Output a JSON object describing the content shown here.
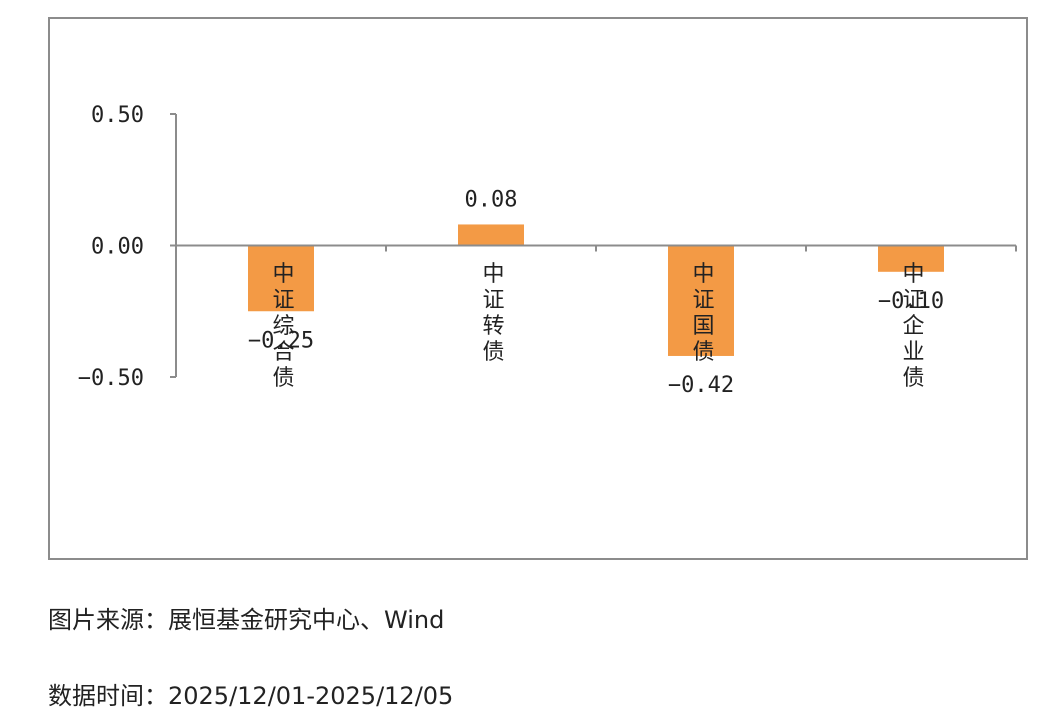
{
  "chart_data": {
    "type": "bar",
    "categories": [
      "中证综合债",
      "中证转债",
      "中证国债",
      "中证企业债"
    ],
    "values": [
      -0.25,
      0.08,
      -0.42,
      -0.1
    ],
    "value_labels": [
      "-0.25",
      "0.08",
      "-0.42",
      "-0.10"
    ],
    "yticks": [
      "0.50",
      "0.00",
      "-0.50"
    ],
    "ylim": [
      -0.5,
      0.5
    ],
    "grid": false,
    "bar_color": "#f39a45",
    "axis_color": "#8c8c8c"
  },
  "notes": {
    "source": "图片来源：展恒基金研究中心、Wind",
    "date": "数据时间：2025/12/01-2025/12/05"
  }
}
